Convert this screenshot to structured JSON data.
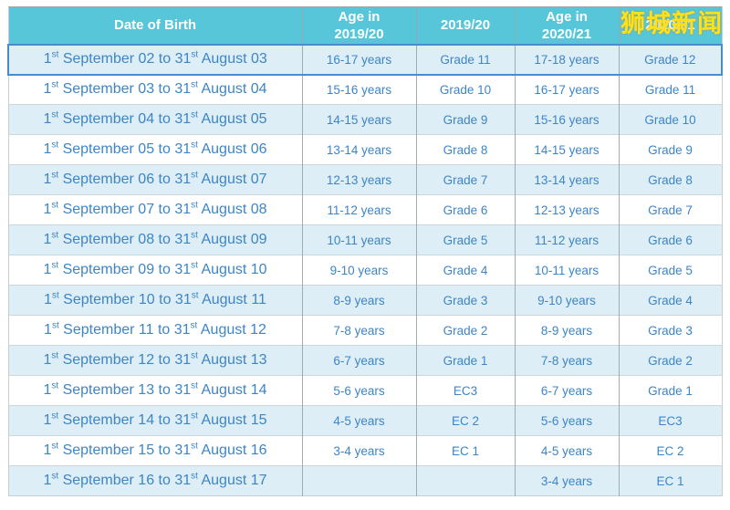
{
  "watermark": {
    "text": "狮城新闻",
    "color": "#FFE11A"
  },
  "colors": {
    "header_bg": "#57C6D9",
    "header_text": "#FFFFFF",
    "row_alt_bg": "#DDEEF6",
    "row_bg": "#FFFFFF",
    "cell_text": "#3D85C6",
    "highlight_row_border": "#4A8CCB"
  },
  "table": {
    "headers": [
      "Date of Birth",
      "Age in\n2019/20",
      "2019/20",
      "Age in\n2020/21",
      "2020/21"
    ],
    "rows": [
      [
        "1st September 02 to 31st August 03",
        "16-17 years",
        "Grade 11",
        "17-18 years",
        "Grade 12"
      ],
      [
        "1st September 03 to 31st August 04",
        "15-16 years",
        "Grade 10",
        "16-17 years",
        "Grade 11"
      ],
      [
        "1st September 04 to 31st August 05",
        "14-15 years",
        "Grade 9",
        "15-16 years",
        "Grade 10"
      ],
      [
        "1st September 05 to 31st August 06",
        "13-14 years",
        "Grade 8",
        "14-15 years",
        "Grade 9"
      ],
      [
        "1st September 06 to 31st August 07",
        "12-13 years",
        "Grade 7",
        "13-14 years",
        "Grade 8"
      ],
      [
        "1st September 07 to 31st August 08",
        "11-12 years",
        "Grade 6",
        "12-13 years",
        "Grade 7"
      ],
      [
        "1st September 08 to 31st August 09",
        "10-11 years",
        "Grade 5",
        "11-12 years",
        "Grade 6"
      ],
      [
        "1st September 09 to 31st August 10",
        "9-10 years",
        "Grade 4",
        "10-11 years",
        "Grade 5"
      ],
      [
        "1st September 10 to 31st August 11",
        "8-9 years",
        "Grade 3",
        "9-10 years",
        "Grade 4"
      ],
      [
        "1st September 11 to 31st August 12",
        "7-8 years",
        "Grade 2",
        "8-9 years",
        "Grade 3"
      ],
      [
        "1st September 12 to 31st August 13",
        "6-7 years",
        "Grade 1",
        "7-8 years",
        "Grade 2"
      ],
      [
        "1st September 13 to 31st August 14",
        "5-6 years",
        "EC3",
        "6-7 years",
        "Grade 1"
      ],
      [
        "1st September 14 to 31st August 15",
        "4-5 years",
        "EC 2",
        "5-6 years",
        "EC3"
      ],
      [
        "1st September 15 to 31st August 16",
        "3-4 years",
        "EC 1",
        "4-5 years",
        "EC 2"
      ],
      [
        "1st September 16 to 31st August 17",
        "",
        "",
        "3-4 years",
        "EC 1"
      ]
    ]
  }
}
